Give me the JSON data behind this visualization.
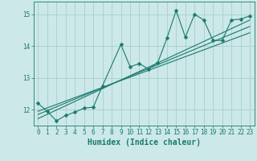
{
  "xlabel": "Humidex (Indice chaleur)",
  "ylabel": "",
  "bg_color": "#cce8e8",
  "grid_color": "#aacece",
  "line_color": "#1a7a6e",
  "xlim": [
    -0.5,
    23.5
  ],
  "ylim": [
    11.5,
    15.4
  ],
  "xticks": [
    0,
    1,
    2,
    3,
    4,
    5,
    6,
    7,
    8,
    9,
    10,
    11,
    12,
    13,
    14,
    15,
    16,
    17,
    18,
    19,
    20,
    21,
    22,
    23
  ],
  "yticks": [
    12,
    13,
    14,
    15
  ],
  "scatter_x": [
    0,
    1,
    2,
    3,
    4,
    5,
    6,
    7,
    9,
    10,
    11,
    12,
    13,
    14,
    15,
    16,
    17,
    18,
    19,
    20,
    21,
    22,
    23
  ],
  "scatter_y": [
    12.2,
    11.95,
    11.65,
    11.82,
    11.92,
    12.05,
    12.08,
    12.75,
    14.05,
    13.35,
    13.45,
    13.28,
    13.48,
    14.25,
    15.12,
    14.28,
    15.0,
    14.82,
    14.18,
    14.18,
    14.82,
    14.85,
    14.95
  ],
  "line1_x": [
    0,
    23
  ],
  "line1_y": [
    11.72,
    14.82
  ],
  "line2_x": [
    0,
    23
  ],
  "line2_y": [
    11.85,
    14.62
  ],
  "line3_x": [
    0,
    23
  ],
  "line3_y": [
    11.95,
    14.42
  ],
  "font_size_label": 7,
  "font_size_tick": 5.5,
  "marker_size": 2.5,
  "lw": 0.8
}
